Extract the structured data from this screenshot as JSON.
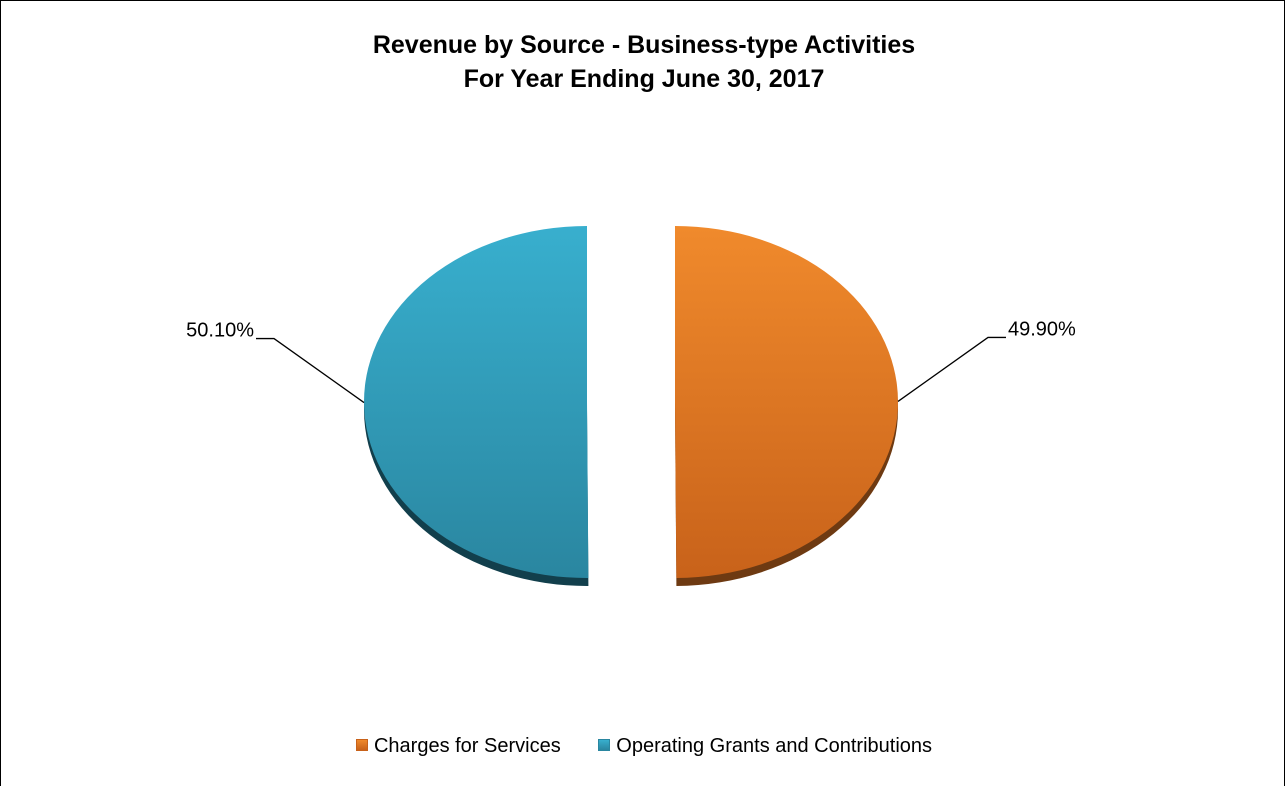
{
  "chart_data": {
    "type": "pie",
    "title": "Revenue by Source - Business-type Activities",
    "subtitle": "For Year Ending June 30, 2017",
    "legend_position": "bottom",
    "slices": [
      {
        "name": "Charges for Services",
        "value": 49.9,
        "label": "49.90%",
        "color": "#F08A2C",
        "color_dark": "#C8621A",
        "color_shadow": "#6E3A12"
      },
      {
        "name": "Operating Grants and Contributions",
        "value": 50.1,
        "label": "50.10%",
        "color": "#38AFCE",
        "color_dark": "#2A86A0",
        "color_shadow": "#123F4C"
      }
    ]
  }
}
